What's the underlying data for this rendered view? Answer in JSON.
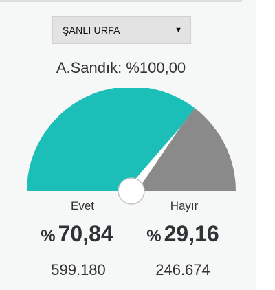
{
  "province_select": {
    "selected": "ŞANLI URFA",
    "arrow": "▼"
  },
  "turnout": {
    "text": "A.Sandık: %100,00"
  },
  "colors": {
    "yes": "#1bbfb7",
    "no": "#8a8a8a",
    "panel": "#f6f7f7"
  },
  "results": {
    "yes": {
      "label": "Evet",
      "symbol": "%",
      "percent": "70,84",
      "percent_value": 70.84,
      "votes": "599.180"
    },
    "no": {
      "label": "Hayır",
      "symbol": "%",
      "percent": "29,16",
      "percent_value": 29.16,
      "votes": "246.674"
    }
  }
}
